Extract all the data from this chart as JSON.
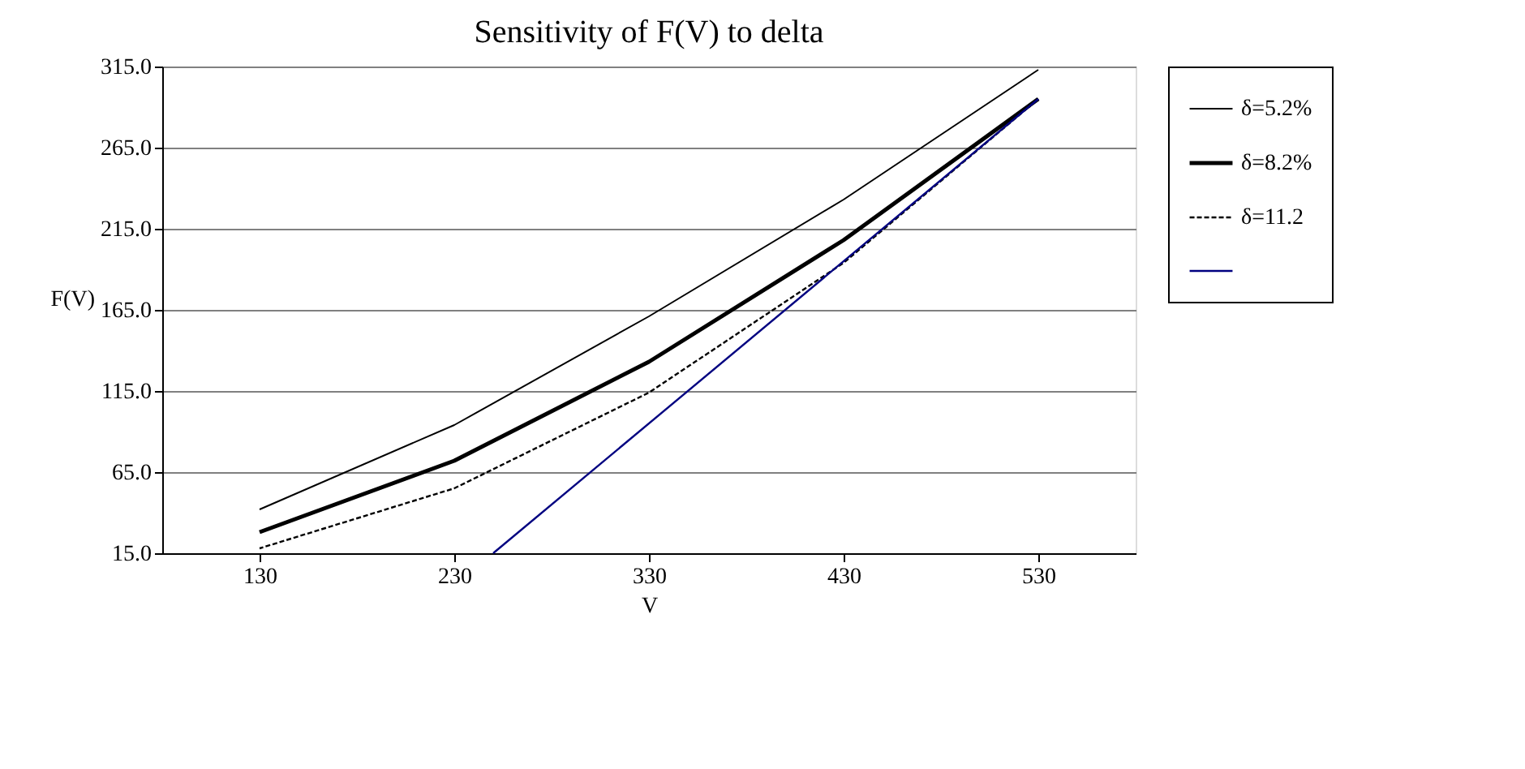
{
  "chart_data": {
    "type": "line",
    "title": "Sensitivity of F(V) to delta",
    "xlabel": "V",
    "ylabel": "F(V)",
    "x": [
      130,
      230,
      330,
      430,
      530
    ],
    "series": [
      {
        "name": "δ=5.2%",
        "color": "#000000",
        "line_style": "solid",
        "values": [
          42,
          94,
          161,
          233,
          313
        ]
      },
      {
        "name": "δ=8.2%",
        "color": "#000000",
        "line_style": "solid",
        "values": [
          28,
          72,
          133,
          208,
          295
        ]
      },
      {
        "name": "δ=11.2",
        "color": "#000000",
        "line_style": "dotted",
        "values": [
          18,
          55,
          114,
          194,
          295
        ]
      },
      {
        "color": "#000080",
        "line_style": "solid",
        "x": [
          250,
          530
        ],
        "values": [
          15,
          295
        ]
      }
    ],
    "xlim": [
      80,
      580
    ],
    "xticks": [
      130,
      230,
      330,
      430,
      530
    ],
    "ylim": [
      15,
      315
    ],
    "yticks": [
      {
        "value": 15,
        "label": "15.0"
      },
      {
        "value": 65,
        "label": "65.0"
      },
      {
        "value": 115,
        "label": "115.0"
      },
      {
        "value": 165,
        "label": "165.0"
      },
      {
        "value": 215,
        "label": "215.0"
      },
      {
        "value": 265,
        "label": "265.0"
      },
      {
        "value": 315,
        "label": "315.0"
      }
    ],
    "grid": "y",
    "legend": "right",
    "marker": "none"
  }
}
